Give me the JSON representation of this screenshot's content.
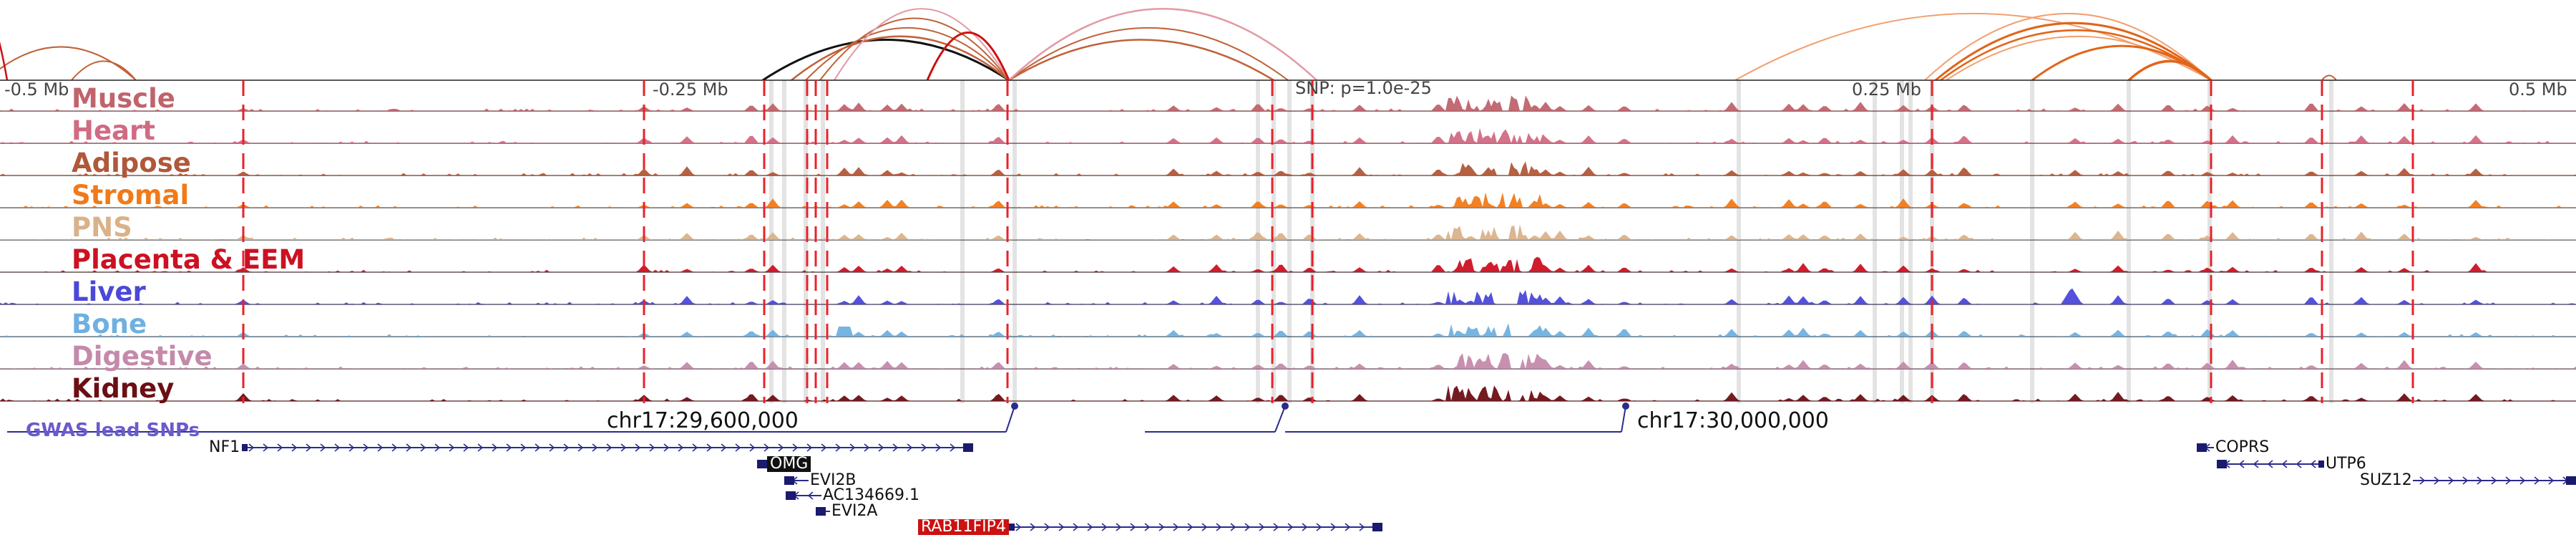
{
  "axis": {
    "left_label": "-0.5 Mb",
    "q1_label": "-0.25 Mb",
    "snp_label": "SNP: p=1.0e-25",
    "q3_label": "0.25 Mb",
    "right_label": "0.5 Mb"
  },
  "tracks": [
    {
      "name": "Muscle",
      "color": "#c0636b"
    },
    {
      "name": "Heart",
      "color": "#d06b84"
    },
    {
      "name": "Adipose",
      "color": "#b0583a"
    },
    {
      "name": "Stromal",
      "color": "#f07a1a"
    },
    {
      "name": "PNS",
      "color": "#d9b28a"
    },
    {
      "name": "Placenta & EEM",
      "color": "#cc1122"
    },
    {
      "name": "Liver",
      "color": "#4b48d8"
    },
    {
      "name": "Bone",
      "color": "#6fb0e0"
    },
    {
      "name": "Digestive",
      "color": "#c48aaa"
    },
    {
      "name": "Kidney",
      "color": "#6b0f14"
    }
  ],
  "gwas": {
    "label": "GWAS lead SNPs",
    "coord_left": "chr17:29,600,000",
    "coord_right": "chr17:30,000,000",
    "color": "#6a5acd"
  },
  "genes": [
    {
      "name": "NF1",
      "style": "plain"
    },
    {
      "name": "OMG",
      "style": "highlight-black",
      "bg": "#111111",
      "fg": "#ffffff"
    },
    {
      "name": "EVI2B",
      "style": "plain"
    },
    {
      "name": "AC134669.1",
      "style": "plain"
    },
    {
      "name": "EVI2A",
      "style": "plain"
    },
    {
      "name": "RAB11FIP4",
      "style": "highlight-red",
      "bg": "#cc1111",
      "fg": "#ffffff"
    },
    {
      "name": "COPRS",
      "style": "plain"
    },
    {
      "name": "UTP6",
      "style": "plain"
    },
    {
      "name": "SUZ12",
      "style": "plain"
    }
  ],
  "colors": {
    "lead_line": "#e8222a",
    "highlight_band": "#d9d9d9",
    "arc_black": "#111111",
    "arc_red": "#cc1111",
    "arc_pink": "#e39aa5",
    "arc_orange_dark": "#e0651a",
    "arc_orange_light": "#f2a070",
    "arc_brown": "#c0623a",
    "gene_strand": "#2b2b8c"
  }
}
